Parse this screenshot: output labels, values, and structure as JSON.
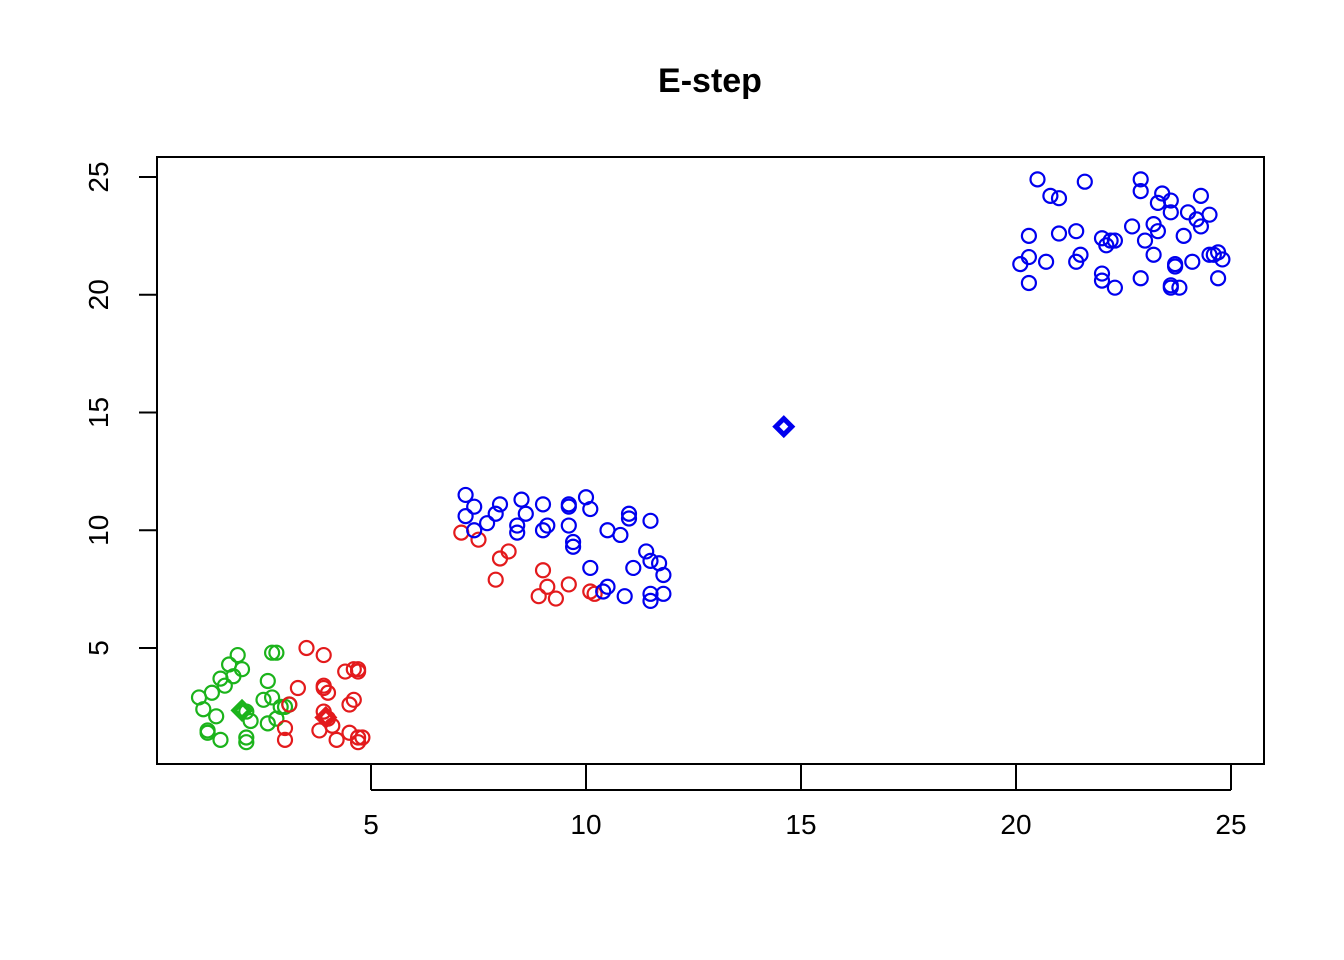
{
  "chart_data": {
    "type": "scatter",
    "title": "E-step",
    "xlabel": "",
    "ylabel": "",
    "xlim": [
      0,
      26
    ],
    "ylim": [
      0.5,
      26.3
    ],
    "xticks": [
      5,
      10,
      15,
      20,
      25
    ],
    "yticks": [
      5,
      10,
      15,
      20,
      25
    ],
    "grid": false,
    "legend": "none",
    "marker": "open-circle",
    "centroid_marker": "diamond",
    "series": [
      {
        "color": "#1bb31b",
        "points": [
          [
            1.0,
            2.9
          ],
          [
            1.1,
            2.4
          ],
          [
            1.2,
            1.5
          ],
          [
            1.2,
            1.4
          ],
          [
            1.3,
            3.1
          ],
          [
            1.4,
            2.1
          ],
          [
            1.5,
            1.1
          ],
          [
            1.5,
            3.7
          ],
          [
            1.6,
            3.4
          ],
          [
            1.7,
            4.3
          ],
          [
            1.8,
            3.8
          ],
          [
            1.9,
            4.7
          ],
          [
            2.0,
            4.1
          ],
          [
            2.1,
            2.3
          ],
          [
            2.1,
            1.2
          ],
          [
            2.1,
            1.0
          ],
          [
            2.2,
            1.9
          ],
          [
            2.5,
            2.8
          ],
          [
            2.6,
            1.8
          ],
          [
            2.6,
            3.6
          ],
          [
            2.7,
            4.8
          ],
          [
            2.7,
            2.9
          ],
          [
            2.8,
            4.8
          ],
          [
            2.8,
            2.0
          ],
          [
            2.9,
            2.5
          ],
          [
            3.0,
            2.5
          ],
          [
            3.1,
            2.6
          ]
        ],
        "centroid": [
          2.0,
          2.35
        ]
      },
      {
        "color": "#e31a1c",
        "points": [
          [
            3.0,
            1.6
          ],
          [
            3.0,
            1.1
          ],
          [
            3.1,
            2.6
          ],
          [
            3.3,
            3.3
          ],
          [
            3.5,
            5.0
          ],
          [
            3.8,
            1.5
          ],
          [
            3.9,
            4.7
          ],
          [
            3.9,
            3.4
          ],
          [
            3.9,
            3.3
          ],
          [
            3.9,
            2.3
          ],
          [
            4.0,
            2.0
          ],
          [
            4.0,
            3.1
          ],
          [
            4.1,
            1.7
          ],
          [
            4.2,
            1.1
          ],
          [
            4.4,
            4.0
          ],
          [
            4.5,
            2.6
          ],
          [
            4.5,
            1.4
          ],
          [
            4.6,
            2.8
          ],
          [
            4.6,
            4.1
          ],
          [
            4.7,
            4.0
          ],
          [
            4.7,
            1.0
          ],
          [
            4.7,
            1.2
          ],
          [
            4.8,
            1.2
          ],
          [
            4.7,
            4.1
          ],
          [
            7.1,
            9.9
          ],
          [
            7.5,
            9.6
          ],
          [
            7.9,
            7.9
          ],
          [
            8.0,
            8.8
          ],
          [
            8.2,
            9.1
          ],
          [
            8.9,
            7.2
          ],
          [
            9.0,
            8.3
          ],
          [
            9.1,
            7.6
          ],
          [
            9.3,
            7.1
          ],
          [
            9.6,
            7.7
          ],
          [
            10.1,
            7.4
          ],
          [
            10.2,
            7.3
          ]
        ],
        "centroid": [
          3.95,
          2.05
        ]
      },
      {
        "color": "#0000ee",
        "points": [
          [
            7.2,
            11.5
          ],
          [
            7.2,
            10.6
          ],
          [
            7.4,
            11.0
          ],
          [
            7.4,
            10.0
          ],
          [
            7.7,
            10.3
          ],
          [
            7.9,
            10.7
          ],
          [
            8.0,
            11.1
          ],
          [
            8.4,
            10.2
          ],
          [
            8.4,
            9.9
          ],
          [
            8.5,
            11.3
          ],
          [
            8.6,
            10.7
          ],
          [
            9.0,
            11.1
          ],
          [
            9.0,
            10.0
          ],
          [
            9.1,
            10.2
          ],
          [
            9.6,
            11.1
          ],
          [
            9.6,
            11.0
          ],
          [
            9.6,
            10.2
          ],
          [
            9.7,
            9.5
          ],
          [
            9.7,
            9.3
          ],
          [
            10.0,
            11.4
          ],
          [
            10.1,
            10.9
          ],
          [
            10.1,
            8.4
          ],
          [
            10.4,
            7.4
          ],
          [
            10.5,
            7.6
          ],
          [
            10.5,
            10.0
          ],
          [
            10.8,
            9.8
          ],
          [
            10.9,
            7.2
          ],
          [
            11.0,
            10.7
          ],
          [
            11.0,
            10.5
          ],
          [
            11.1,
            8.4
          ],
          [
            11.4,
            9.1
          ],
          [
            11.5,
            10.4
          ],
          [
            11.5,
            8.7
          ],
          [
            11.5,
            7.3
          ],
          [
            11.5,
            7.0
          ],
          [
            11.7,
            8.6
          ],
          [
            11.8,
            8.1
          ],
          [
            11.8,
            7.3
          ],
          [
            20.1,
            21.3
          ],
          [
            20.3,
            22.5
          ],
          [
            20.3,
            21.6
          ],
          [
            20.3,
            20.5
          ],
          [
            20.5,
            24.9
          ],
          [
            20.7,
            21.4
          ],
          [
            20.8,
            24.2
          ],
          [
            21.0,
            24.1
          ],
          [
            21.0,
            22.6
          ],
          [
            21.4,
            22.7
          ],
          [
            21.4,
            21.4
          ],
          [
            21.5,
            21.7
          ],
          [
            21.6,
            24.8
          ],
          [
            22.0,
            22.4
          ],
          [
            22.0,
            20.9
          ],
          [
            22.0,
            20.6
          ],
          [
            22.1,
            22.1
          ],
          [
            22.2,
            22.3
          ],
          [
            22.3,
            20.3
          ],
          [
            22.3,
            22.3
          ],
          [
            22.7,
            22.9
          ],
          [
            22.9,
            24.9
          ],
          [
            22.9,
            24.4
          ],
          [
            22.9,
            20.7
          ],
          [
            23.0,
            22.3
          ],
          [
            23.2,
            23.0
          ],
          [
            23.2,
            21.7
          ],
          [
            23.3,
            23.9
          ],
          [
            23.3,
            22.7
          ],
          [
            23.4,
            24.3
          ],
          [
            23.6,
            24.0
          ],
          [
            23.6,
            23.5
          ],
          [
            23.6,
            20.3
          ],
          [
            23.6,
            20.4
          ],
          [
            23.7,
            21.2
          ],
          [
            23.7,
            21.3
          ],
          [
            23.8,
            20.3
          ],
          [
            23.9,
            22.5
          ],
          [
            24.0,
            23.5
          ],
          [
            24.1,
            21.4
          ],
          [
            24.2,
            23.2
          ],
          [
            24.3,
            24.2
          ],
          [
            24.3,
            22.9
          ],
          [
            24.5,
            23.4
          ],
          [
            24.5,
            21.7
          ],
          [
            24.6,
            21.7
          ],
          [
            24.7,
            21.8
          ],
          [
            24.7,
            20.7
          ],
          [
            24.8,
            21.5
          ]
        ],
        "centroid": [
          14.6,
          14.4
        ]
      }
    ]
  }
}
